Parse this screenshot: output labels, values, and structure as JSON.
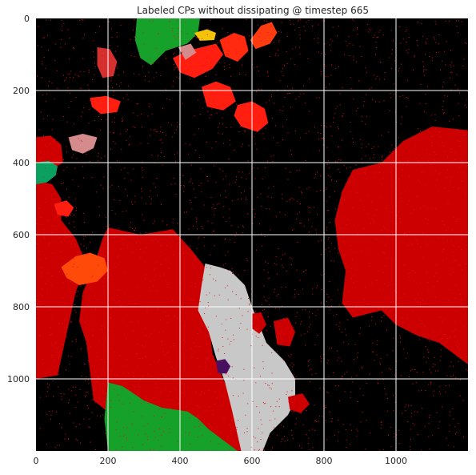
{
  "chart_data": {
    "type": "heatmap",
    "title": "Labeled CPs without dissipating @ timestep 665",
    "xlabel": "",
    "ylabel": "",
    "xlim": [
      0,
      1200
    ],
    "ylim": [
      1200,
      0
    ],
    "x_ticks": [
      0,
      200,
      400,
      600,
      800,
      1000
    ],
    "y_ticks": [
      0,
      200,
      400,
      600,
      800,
      1000
    ],
    "x_tick_labels": [
      "0",
      "200",
      "400",
      "600",
      "800",
      "1000"
    ],
    "y_tick_labels": [
      "0",
      "200",
      "400",
      "600",
      "800",
      "1000"
    ],
    "grid": true,
    "background_color": "#000000",
    "noise_color": "#e8121b",
    "regions": [
      {
        "label": "cp-large-left",
        "color": "#cc0000",
        "points": [
          [
            200,
            580
          ],
          [
            290,
            600
          ],
          [
            380,
            585
          ],
          [
            430,
            640
          ],
          [
            470,
            690
          ],
          [
            460,
            760
          ],
          [
            480,
            840
          ],
          [
            490,
            930
          ],
          [
            520,
            1000
          ],
          [
            555,
            1080
          ],
          [
            570,
            1150
          ],
          [
            580,
            1200
          ],
          [
            300,
            1200
          ],
          [
            270,
            1130
          ],
          [
            210,
            1100
          ],
          [
            160,
            1060
          ],
          [
            150,
            980
          ],
          [
            140,
            900
          ],
          [
            120,
            840
          ],
          [
            130,
            760
          ],
          [
            160,
            690
          ],
          [
            185,
            610
          ]
        ]
      },
      {
        "label": "cp-large-right",
        "color": "#cc0000",
        "points": [
          [
            1200,
            310
          ],
          [
            1100,
            300
          ],
          [
            1020,
            340
          ],
          [
            960,
            400
          ],
          [
            880,
            420
          ],
          [
            850,
            480
          ],
          [
            830,
            560
          ],
          [
            840,
            640
          ],
          [
            860,
            700
          ],
          [
            850,
            790
          ],
          [
            880,
            830
          ],
          [
            960,
            810
          ],
          [
            1000,
            850
          ],
          [
            1060,
            880
          ],
          [
            1120,
            900
          ],
          [
            1200,
            960
          ]
        ]
      },
      {
        "label": "cp-left-edge",
        "color": "#cc0000",
        "points": [
          [
            0,
            450
          ],
          [
            45,
            460
          ],
          [
            70,
            500
          ],
          [
            70,
            560
          ],
          [
            110,
            610
          ],
          [
            140,
            680
          ],
          [
            110,
            760
          ],
          [
            95,
            830
          ],
          [
            75,
            920
          ],
          [
            60,
            990
          ],
          [
            0,
            1000
          ]
        ]
      },
      {
        "label": "cp-left-upper",
        "color": "#d00000",
        "points": [
          [
            0,
            330
          ],
          [
            40,
            325
          ],
          [
            70,
            350
          ],
          [
            75,
            400
          ],
          [
            40,
            420
          ],
          [
            0,
            415
          ]
        ]
      },
      {
        "label": "cp-gray-tongue",
        "color": "#c8c8c8",
        "points": [
          [
            470,
            680
          ],
          [
            510,
            690
          ],
          [
            540,
            700
          ],
          [
            580,
            740
          ],
          [
            600,
            800
          ],
          [
            620,
            850
          ],
          [
            640,
            900
          ],
          [
            690,
            950
          ],
          [
            720,
            1000
          ],
          [
            720,
            1060
          ],
          [
            700,
            1100
          ],
          [
            650,
            1150
          ],
          [
            630,
            1200
          ],
          [
            570,
            1200
          ],
          [
            545,
            1090
          ],
          [
            525,
            1010
          ],
          [
            500,
            940
          ],
          [
            480,
            870
          ],
          [
            450,
            810
          ],
          [
            460,
            740
          ]
        ]
      },
      {
        "label": "cp-orange-mid",
        "color": "#ff4a0a",
        "points": [
          [
            70,
            690
          ],
          [
            110,
            660
          ],
          [
            150,
            650
          ],
          [
            190,
            665
          ],
          [
            200,
            700
          ],
          [
            170,
            730
          ],
          [
            120,
            740
          ],
          [
            85,
            720
          ]
        ]
      },
      {
        "label": "cp-red-small-1",
        "color": "#ff1e10",
        "points": [
          [
            460,
            190
          ],
          [
            500,
            175
          ],
          [
            540,
            190
          ],
          [
            555,
            230
          ],
          [
            520,
            255
          ],
          [
            475,
            245
          ]
        ]
      },
      {
        "label": "cp-red-small-2",
        "color": "#ff1e10",
        "points": [
          [
            560,
            240
          ],
          [
            600,
            230
          ],
          [
            635,
            250
          ],
          [
            645,
            290
          ],
          [
            615,
            315
          ],
          [
            570,
            300
          ],
          [
            550,
            270
          ]
        ]
      },
      {
        "label": "cp-red-top",
        "color": "#ff1e10",
        "points": [
          [
            380,
            110
          ],
          [
            420,
            90
          ],
          [
            460,
            80
          ],
          [
            500,
            70
          ],
          [
            520,
            100
          ],
          [
            490,
            140
          ],
          [
            440,
            165
          ],
          [
            400,
            150
          ]
        ]
      },
      {
        "label": "cp-red-top-2",
        "color": "#ff2a10",
        "points": [
          [
            510,
            60
          ],
          [
            550,
            40
          ],
          [
            580,
            50
          ],
          [
            590,
            90
          ],
          [
            560,
            120
          ],
          [
            525,
            105
          ]
        ]
      },
      {
        "label": "cp-orange-top",
        "color": "#ff3c10",
        "points": [
          [
            595,
            60
          ],
          [
            625,
            20
          ],
          [
            655,
            10
          ],
          [
            670,
            40
          ],
          [
            650,
            70
          ],
          [
            610,
            85
          ]
        ]
      },
      {
        "label": "cp-green-top",
        "color": "#16a12a",
        "points": [
          [
            280,
            0
          ],
          [
            455,
            0
          ],
          [
            450,
            40
          ],
          [
            420,
            70
          ],
          [
            360,
            90
          ],
          [
            320,
            130
          ],
          [
            290,
            110
          ],
          [
            275,
            60
          ]
        ]
      },
      {
        "label": "cp-green-bottom",
        "color": "#16a12a",
        "points": [
          [
            200,
            1010
          ],
          [
            240,
            1020
          ],
          [
            300,
            1060
          ],
          [
            350,
            1080
          ],
          [
            420,
            1090
          ],
          [
            450,
            1110
          ],
          [
            480,
            1140
          ],
          [
            520,
            1170
          ],
          [
            560,
            1200
          ],
          [
            200,
            1200
          ],
          [
            190,
            1110
          ]
        ]
      },
      {
        "label": "cp-green-left",
        "color": "#0aa060",
        "points": [
          [
            0,
            400
          ],
          [
            35,
            395
          ],
          [
            60,
            410
          ],
          [
            55,
            435
          ],
          [
            30,
            455
          ],
          [
            0,
            460
          ]
        ]
      },
      {
        "label": "cp-pink-1",
        "color": "#d38b8b",
        "points": [
          [
            90,
            330
          ],
          [
            130,
            320
          ],
          [
            170,
            330
          ],
          [
            160,
            360
          ],
          [
            130,
            375
          ],
          [
            100,
            365
          ]
        ]
      },
      {
        "label": "cp-pink-2",
        "color": "#d38b8b",
        "points": [
          [
            395,
            80
          ],
          [
            430,
            70
          ],
          [
            445,
            95
          ],
          [
            415,
            115
          ]
        ]
      },
      {
        "label": "cp-crimson",
        "color": "#d43030",
        "points": [
          [
            170,
            80
          ],
          [
            205,
            85
          ],
          [
            225,
            120
          ],
          [
            215,
            160
          ],
          [
            185,
            165
          ],
          [
            170,
            130
          ]
        ]
      },
      {
        "label": "cp-red-small-3",
        "color": "#ff1e10",
        "points": [
          [
            150,
            220
          ],
          [
            195,
            215
          ],
          [
            235,
            230
          ],
          [
            225,
            260
          ],
          [
            180,
            265
          ],
          [
            155,
            245
          ]
        ]
      },
      {
        "label": "cp-red-small-4",
        "color": "#ff1e10",
        "points": [
          [
            50,
            515
          ],
          [
            85,
            505
          ],
          [
            105,
            525
          ],
          [
            90,
            550
          ],
          [
            60,
            545
          ]
        ]
      },
      {
        "label": "cp-red-right-inner",
        "color": "#cc0000",
        "points": [
          [
            660,
            840
          ],
          [
            700,
            830
          ],
          [
            720,
            870
          ],
          [
            705,
            910
          ],
          [
            670,
            905
          ]
        ]
      },
      {
        "label": "cp-red-gray-spot",
        "color": "#cc0000",
        "points": [
          [
            600,
            820
          ],
          [
            625,
            815
          ],
          [
            640,
            850
          ],
          [
            620,
            875
          ],
          [
            600,
            860
          ]
        ]
      },
      {
        "label": "cp-yellow",
        "color": "#f5c20a",
        "points": [
          [
            440,
            40
          ],
          [
            475,
            30
          ],
          [
            500,
            40
          ],
          [
            495,
            60
          ],
          [
            455,
            62
          ]
        ]
      },
      {
        "label": "cp-purple",
        "color": "#4a1060",
        "points": [
          [
            500,
            950
          ],
          [
            525,
            945
          ],
          [
            540,
            965
          ],
          [
            530,
            985
          ],
          [
            505,
            985
          ]
        ]
      },
      {
        "label": "cp-red-bottom-center",
        "color": "#cc0000",
        "points": [
          [
            700,
            1050
          ],
          [
            740,
            1040
          ],
          [
            760,
            1070
          ],
          [
            735,
            1095
          ],
          [
            705,
            1085
          ]
        ]
      }
    ]
  }
}
